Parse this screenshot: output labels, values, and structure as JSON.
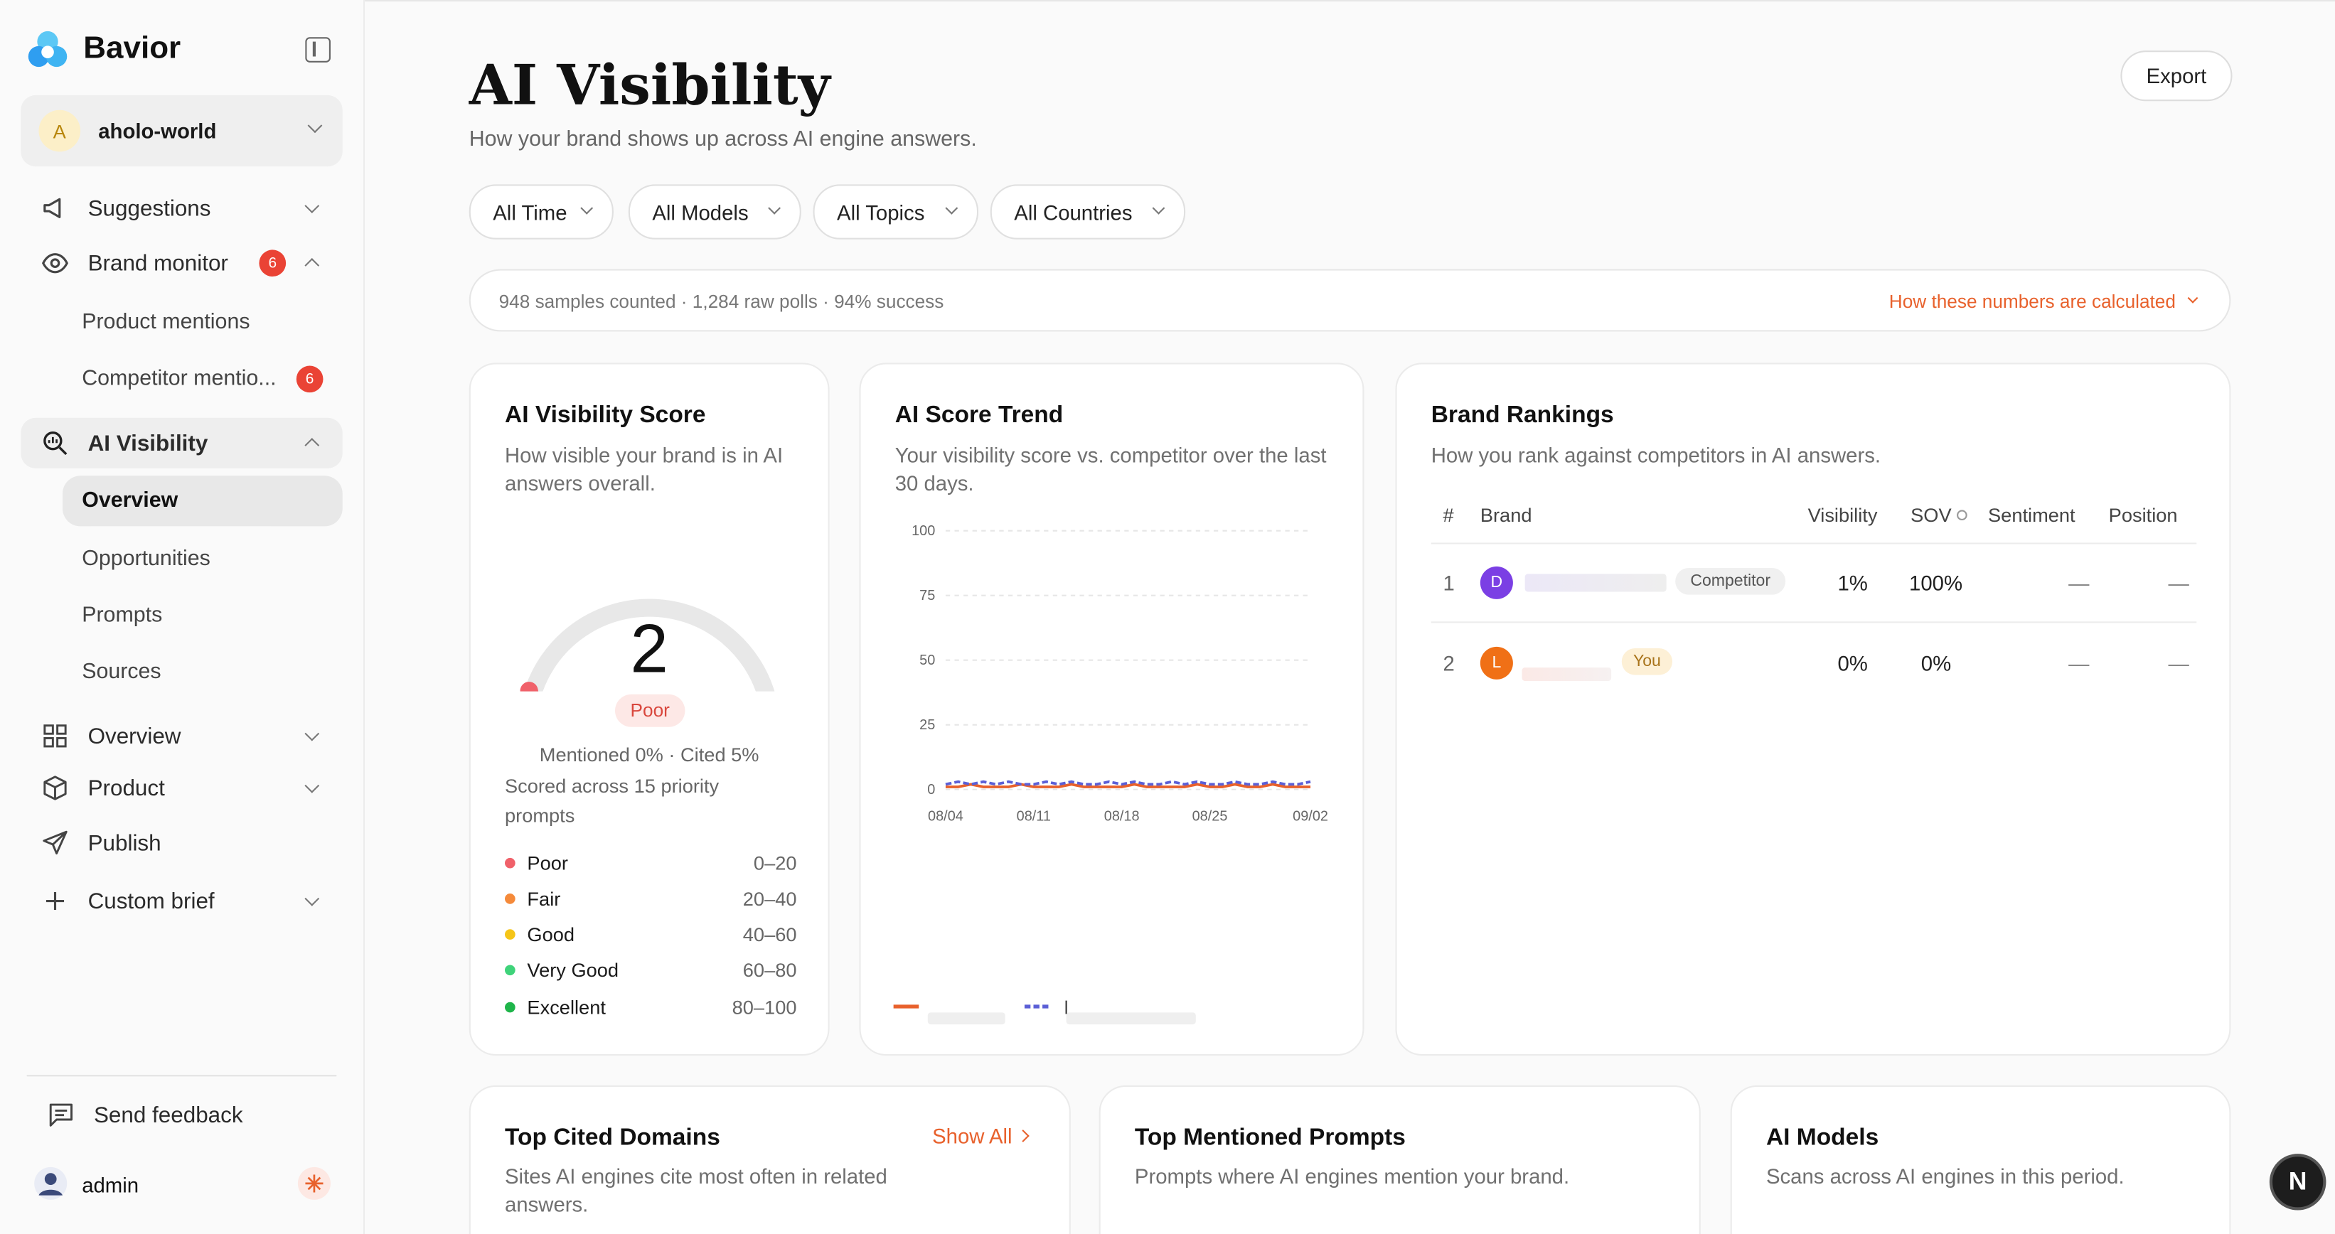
{
  "app": {
    "name": "Bavior"
  },
  "workspace": {
    "initial": "A",
    "name": "aholo-world"
  },
  "sidebar": {
    "items": [
      {
        "label": "Suggestions",
        "icon": "megaphone-icon"
      },
      {
        "label": "Brand monitor",
        "icon": "eye-icon",
        "badge": "6"
      },
      {
        "label": "AI Visibility",
        "icon": "magnifier-chart-icon"
      },
      {
        "label": "Overview",
        "icon": "grid-icon"
      },
      {
        "label": "Product",
        "icon": "box-icon"
      },
      {
        "label": "Publish",
        "icon": "send-icon"
      },
      {
        "label": "Custom brief",
        "icon": "plus-icon"
      }
    ],
    "brand_sub": [
      {
        "label": "Product mentions"
      },
      {
        "label": "Competitor mentio...",
        "badge": "6"
      }
    ],
    "visibility_sub": [
      {
        "label": "Overview"
      },
      {
        "label": "Opportunities"
      },
      {
        "label": "Prompts"
      },
      {
        "label": "Sources"
      }
    ],
    "feedback": "Send feedback",
    "user": "admin"
  },
  "header": {
    "title": "AI Visibility",
    "subtitle": "How your brand shows up across AI engine answers.",
    "export": "Export"
  },
  "filters": [
    "All Time",
    "All Models",
    "All Topics",
    "All Countries"
  ],
  "stats": {
    "summary": "948 samples counted · 1,284 raw polls · 94% success",
    "link": "How these numbers are calculated"
  },
  "score_card": {
    "title": "AI Visibility Score",
    "desc": "How visible your brand is in AI answers overall.",
    "score": "2",
    "score_value": 2,
    "score_max": 100,
    "rating": "Poor",
    "mention": "Mentioned 0% · Cited 5%",
    "scored": "Scored across 15 priority prompts",
    "legend": [
      {
        "label": "Poor",
        "range": "0–20",
        "color": "#f0616a"
      },
      {
        "label": "Fair",
        "range": "20–40",
        "color": "#f58a3a"
      },
      {
        "label": "Good",
        "range": "40–60",
        "color": "#f5c518"
      },
      {
        "label": "Very Good",
        "range": "60–80",
        "color": "#3fd37a"
      },
      {
        "label": "Excellent",
        "range": "80–100",
        "color": "#1fb54a"
      }
    ]
  },
  "trend_card": {
    "title": "AI Score Trend",
    "desc": "Your visibility score vs. competitor over the last 30 days."
  },
  "chart_data": {
    "type": "line",
    "x": [
      "08/04",
      "08/05",
      "08/06",
      "08/07",
      "08/08",
      "08/09",
      "08/10",
      "08/11",
      "08/12",
      "08/13",
      "08/14",
      "08/15",
      "08/16",
      "08/17",
      "08/18",
      "08/19",
      "08/20",
      "08/21",
      "08/22",
      "08/23",
      "08/24",
      "08/25",
      "08/26",
      "08/27",
      "08/28",
      "08/29",
      "08/30",
      "08/31",
      "09/01",
      "09/02"
    ],
    "xticks": [
      "08/04",
      "08/11",
      "08/18",
      "08/25",
      "09/02"
    ],
    "yticks": [
      "0",
      "25",
      "50",
      "75",
      "100"
    ],
    "ylim": [
      0,
      100
    ],
    "grid": true,
    "series": [
      {
        "color": "#e8612c",
        "style": "solid",
        "values": [
          1,
          1,
          2,
          1,
          1,
          1,
          2,
          1,
          1,
          1,
          2,
          1,
          1,
          1,
          1,
          2,
          1,
          1,
          1,
          1,
          2,
          1,
          1,
          2,
          1,
          1,
          2,
          1,
          1,
          1
        ]
      },
      {
        "color": "#5b5fd6",
        "style": "dashed",
        "values": [
          2,
          3,
          2,
          3,
          2,
          3,
          2,
          2,
          3,
          2,
          3,
          2,
          2,
          3,
          2,
          3,
          2,
          2,
          3,
          2,
          3,
          2,
          2,
          3,
          2,
          2,
          3,
          2,
          2,
          3
        ]
      }
    ]
  },
  "rankings": {
    "title": "Brand Rankings",
    "desc": "How you rank against competitors in AI answers.",
    "headers": {
      "rank": "#",
      "brand": "Brand",
      "visibility": "Visibility",
      "sov": "SOV",
      "sentiment": "Sentiment",
      "position": "Position"
    },
    "rows": [
      {
        "rank": "1",
        "initial": "D",
        "color": "#7b3fe4",
        "tag": "Competitor",
        "visibility": "1%",
        "sov": "100%",
        "sentiment": "—",
        "position": "—"
      },
      {
        "rank": "2",
        "initial": "L",
        "color": "#f07016",
        "tag": "You",
        "visibility": "0%",
        "sov": "0%",
        "sentiment": "—",
        "position": "—"
      }
    ]
  },
  "bottom": [
    {
      "title": "Top Cited Domains",
      "link": "Show All",
      "desc": "Sites AI engines cite most often in related answers."
    },
    {
      "title": "Top Mentioned Prompts",
      "desc": "Prompts where AI engines mention your brand."
    },
    {
      "title": "AI Models",
      "desc": "Scans across AI engines in this period."
    }
  ],
  "fab": "N"
}
